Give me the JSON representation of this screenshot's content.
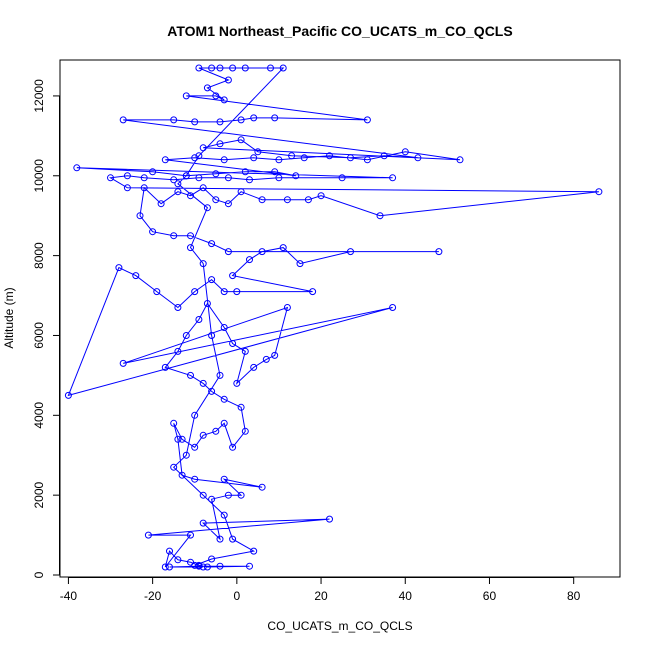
{
  "chart_data": {
    "type": "scatter",
    "title": "ATOM1 Northeast_Pacific CO_UCATS_m_CO_QCLS",
    "xlabel": "CO_UCATS_m_CO_QCLS",
    "ylabel": "Altitude (m)",
    "xlim": [
      -42,
      91
    ],
    "ylim": [
      -50,
      12900
    ],
    "x_ticks": [
      -40,
      -20,
      0,
      20,
      40,
      60,
      80
    ],
    "y_ticks": [
      0,
      2000,
      4000,
      6000,
      8000,
      10000,
      12000
    ],
    "grid": false,
    "legend": "none",
    "colors": {
      "series": "#0000ff",
      "axis": "#000000"
    },
    "series": [
      {
        "mode": "lines+markers",
        "points": [
          [
            -8,
            200
          ],
          [
            -16,
            200
          ],
          [
            -9,
            220
          ],
          [
            -4,
            220
          ],
          [
            3,
            220
          ],
          [
            -7,
            200
          ],
          [
            -9,
            240
          ],
          [
            -11,
            320
          ],
          [
            -14,
            380
          ],
          [
            -16,
            600
          ],
          [
            -17,
            200
          ],
          [
            -11,
            1000
          ],
          [
            -21,
            1000
          ],
          [
            22,
            1400
          ],
          [
            -8,
            1300
          ],
          [
            -4,
            900
          ],
          [
            -6,
            1900
          ],
          [
            -2,
            2000
          ],
          [
            1,
            2000
          ],
          [
            -3,
            2400
          ],
          [
            6,
            2200
          ],
          [
            -10,
            2400
          ],
          [
            -13,
            2500
          ],
          [
            -14,
            3400
          ],
          [
            -15,
            3800
          ],
          [
            -13,
            3400
          ],
          [
            -10,
            3200
          ],
          [
            -8,
            3500
          ],
          [
            -5,
            3600
          ],
          [
            -3,
            3800
          ],
          [
            -1,
            3200
          ],
          [
            2,
            3600
          ],
          [
            1,
            4200
          ],
          [
            -3,
            4400
          ],
          [
            -6,
            4600
          ],
          [
            -8,
            4800
          ],
          [
            -11,
            5000
          ],
          [
            -17,
            5200
          ],
          [
            -14,
            5600
          ],
          [
            -12,
            6000
          ],
          [
            -9,
            6400
          ],
          [
            -7,
            6800
          ],
          [
            -3,
            6200
          ],
          [
            -1,
            5800
          ],
          [
            2,
            5600
          ],
          [
            0,
            4800
          ],
          [
            4,
            5200
          ],
          [
            7,
            5400
          ],
          [
            9,
            5500
          ],
          [
            12,
            6700
          ],
          [
            -27,
            5300
          ],
          [
            37,
            6700
          ],
          [
            -40,
            4500
          ],
          [
            -28,
            7700
          ],
          [
            -24,
            7500
          ],
          [
            -19,
            7100
          ],
          [
            -14,
            6700
          ],
          [
            -10,
            7100
          ],
          [
            -6,
            7400
          ],
          [
            -3,
            7100
          ],
          [
            0,
            7100
          ],
          [
            18,
            7100
          ],
          [
            -1,
            7500
          ],
          [
            3,
            7900
          ],
          [
            6,
            8100
          ],
          [
            11,
            8200
          ],
          [
            15,
            7800
          ],
          [
            27,
            8100
          ],
          [
            48,
            8100
          ],
          [
            -2,
            8100
          ],
          [
            -6,
            8300
          ],
          [
            -11,
            8500
          ],
          [
            -15,
            8500
          ],
          [
            -20,
            8600
          ],
          [
            -23,
            9000
          ],
          [
            -22,
            9700
          ],
          [
            -18,
            9300
          ],
          [
            -14,
            9600
          ],
          [
            -11,
            9500
          ],
          [
            -8,
            9700
          ],
          [
            -5,
            9400
          ],
          [
            -2,
            9300
          ],
          [
            1,
            9600
          ],
          [
            6,
            9400
          ],
          [
            12,
            9400
          ],
          [
            17,
            9400
          ],
          [
            20,
            9500
          ],
          [
            34,
            9000
          ],
          [
            86,
            9600
          ],
          [
            -26,
            9700
          ],
          [
            -30,
            9950
          ],
          [
            -26,
            10000
          ],
          [
            -22,
            9950
          ],
          [
            -15,
            9900
          ],
          [
            -9,
            9950
          ],
          [
            -2,
            9950
          ],
          [
            3,
            9900
          ],
          [
            10,
            9950
          ],
          [
            25,
            9950
          ],
          [
            37,
            9950
          ],
          [
            -38,
            10200
          ],
          [
            -20,
            10100
          ],
          [
            -12,
            10000
          ],
          [
            -5,
            10050
          ],
          [
            2,
            10100
          ],
          [
            9,
            10100
          ],
          [
            14,
            10000
          ],
          [
            -17,
            10400
          ],
          [
            -10,
            10450
          ],
          [
            -3,
            10400
          ],
          [
            4,
            10450
          ],
          [
            10,
            10400
          ],
          [
            16,
            10450
          ],
          [
            22,
            10500
          ],
          [
            31,
            10400
          ],
          [
            40,
            10600
          ],
          [
            53,
            10400
          ],
          [
            -8,
            10700
          ],
          [
            -4,
            10800
          ],
          [
            1,
            10900
          ],
          [
            5,
            10600
          ],
          [
            13,
            10500
          ],
          [
            27,
            10450
          ],
          [
            35,
            10500
          ],
          [
            43,
            10450
          ],
          [
            -27,
            11400
          ],
          [
            -15,
            11400
          ],
          [
            -10,
            11350
          ],
          [
            -4,
            11350
          ],
          [
            1,
            11400
          ],
          [
            4,
            11450
          ],
          [
            9,
            11450
          ],
          [
            31,
            11400
          ],
          [
            -12,
            12000
          ],
          [
            -5,
            12000
          ],
          [
            -3,
            11900
          ],
          [
            -7,
            12200
          ],
          [
            -2,
            12400
          ],
          [
            -9,
            12700
          ],
          [
            -6,
            12700
          ],
          [
            -4,
            12700
          ],
          [
            -1,
            12700
          ],
          [
            2,
            12700
          ],
          [
            8,
            12700
          ],
          [
            11,
            12700
          ],
          [
            -9,
            10500
          ],
          [
            -12,
            10000
          ],
          [
            -14,
            9800
          ],
          [
            -7,
            9200
          ],
          [
            -11,
            8200
          ],
          [
            -8,
            7800
          ],
          [
            -6,
            6000
          ],
          [
            -4,
            5000
          ],
          [
            -10,
            4000
          ],
          [
            -12,
            3000
          ],
          [
            -15,
            2700
          ],
          [
            -8,
            2000
          ],
          [
            -3,
            1500
          ],
          [
            -1,
            900
          ],
          [
            4,
            600
          ],
          [
            -6,
            400
          ],
          [
            -10,
            240
          ]
        ]
      }
    ]
  }
}
